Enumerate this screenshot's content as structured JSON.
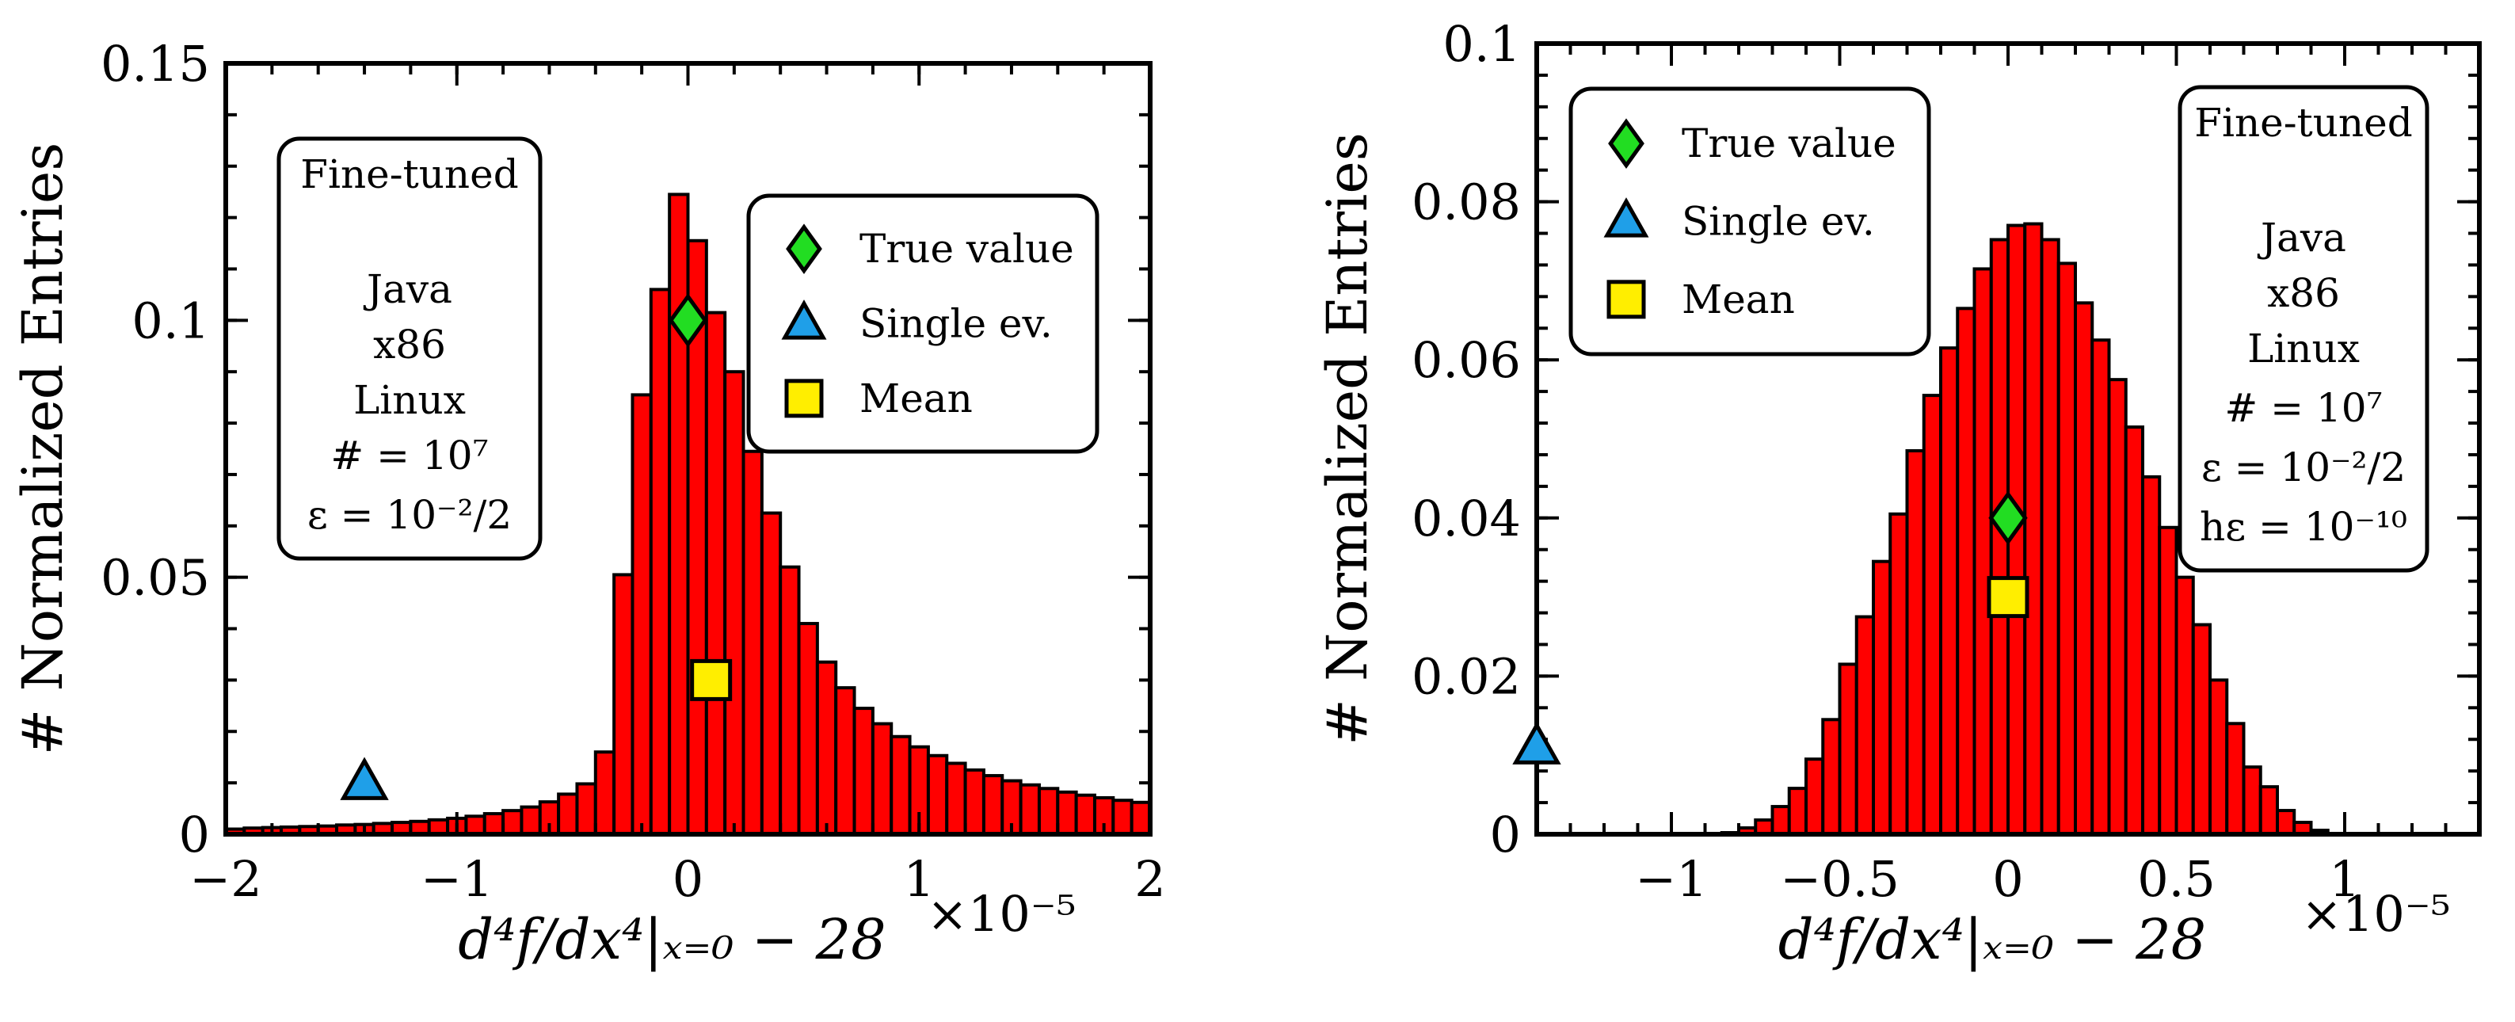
{
  "chart_data": [
    {
      "type": "bar",
      "title": "",
      "xlabel": "d⁴f/dx⁴|ₓ₌₀ − 28",
      "x_multiplier": "×10⁻⁵",
      "ylabel": "# Normalized Entries",
      "xlim": [
        -2,
        2
      ],
      "ylim": [
        0,
        0.15
      ],
      "x_ticks": [
        -2,
        -1,
        0,
        1,
        2
      ],
      "x_tick_labels": [
        "−2",
        "−1",
        "0",
        "1",
        "2"
      ],
      "y_ticks": [
        0,
        0.05,
        0.1,
        0.15
      ],
      "y_tick_labels": [
        "0",
        "0.05",
        "0.1",
        "0.15"
      ],
      "bins": {
        "start": -2.0,
        "width": 0.08
      },
      "values": [
        0.001,
        0.0012,
        0.0013,
        0.0014,
        0.0015,
        0.0016,
        0.0018,
        0.0019,
        0.0021,
        0.0023,
        0.0025,
        0.0028,
        0.0031,
        0.0035,
        0.004,
        0.0046,
        0.0053,
        0.0063,
        0.0078,
        0.0098,
        0.016,
        0.0505,
        0.0855,
        0.106,
        0.1245,
        0.1155,
        0.1015,
        0.09,
        0.0745,
        0.0625,
        0.052,
        0.041,
        0.0335,
        0.0285,
        0.0245,
        0.0215,
        0.019,
        0.017,
        0.0153,
        0.0138,
        0.0125,
        0.0114,
        0.0104,
        0.0096,
        0.0089,
        0.0082,
        0.0076,
        0.0071,
        0.0066,
        0.0062
      ],
      "markers": [
        {
          "name": "True value",
          "shape": "diamond",
          "color": "#22dd22",
          "x": 0.0,
          "y": 0.1
        },
        {
          "name": "Single ev.",
          "shape": "triangle",
          "color": "#1f9fe8",
          "x": -1.4,
          "y": 0.01
        },
        {
          "name": "Mean",
          "shape": "square",
          "color": "#ffee00",
          "x": 0.1,
          "y": 0.03
        }
      ],
      "legend": {
        "position": "top-right",
        "entries": [
          "True value",
          "Single ev.",
          "Mean"
        ]
      },
      "info_box": {
        "position": "top-left",
        "lines": [
          "Fine-tuned",
          "",
          "Java",
          "x86",
          "Linux",
          "# = 10⁷",
          "ε = 10⁻²/2"
        ]
      }
    },
    {
      "type": "bar",
      "title": "",
      "xlabel": "d⁴f/dx⁴|ₓ₌₀ − 28",
      "x_multiplier": "×10⁻⁵",
      "ylabel": "# Normalized Entries",
      "xlim": [
        -1.4,
        1.4
      ],
      "ylim": [
        0,
        0.1
      ],
      "x_ticks": [
        -1,
        -0.5,
        0,
        0.5,
        1
      ],
      "x_tick_labels": [
        "−1",
        "−0.5",
        "0",
        "0.5",
        "1"
      ],
      "y_ticks": [
        0,
        0.02,
        0.04,
        0.06,
        0.08,
        0.1
      ],
      "y_tick_labels": [
        "0",
        "0.02",
        "0.04",
        "0.06",
        "0.08",
        "0.1"
      ],
      "bins": {
        "start": -0.85,
        "width": 0.05
      },
      "values": [
        0.0002,
        0.0008,
        0.0018,
        0.0035,
        0.0058,
        0.0095,
        0.0145,
        0.0215,
        0.0275,
        0.0345,
        0.0405,
        0.0485,
        0.0555,
        0.0615,
        0.0665,
        0.0715,
        0.0752,
        0.077,
        0.0772,
        0.0752,
        0.0722,
        0.0672,
        0.0625,
        0.0575,
        0.0515,
        0.0452,
        0.0388,
        0.0325,
        0.0265,
        0.0195,
        0.014,
        0.0085,
        0.006,
        0.003,
        0.0015,
        0.0005
      ],
      "markers": [
        {
          "name": "True value",
          "shape": "diamond",
          "color": "#22dd22",
          "x": 0.0,
          "y": 0.04
        },
        {
          "name": "Single ev.",
          "shape": "triangle",
          "color": "#1f9fe8",
          "x": -1.4,
          "y": 0.011
        },
        {
          "name": "Mean",
          "shape": "square",
          "color": "#ffee00",
          "x": 0.0,
          "y": 0.03
        }
      ],
      "legend": {
        "position": "top-left",
        "entries": [
          "True value",
          "Single ev.",
          "Mean"
        ]
      },
      "info_box": {
        "position": "top-right",
        "lines": [
          "Fine-tuned",
          "",
          "Java",
          "x86",
          "Linux",
          "# = 10⁷",
          "ε = 10⁻²/2",
          "hε = 10⁻¹⁰"
        ]
      }
    }
  ],
  "colors": {
    "bar_fill": "#ff0000",
    "bar_edge": "#000000"
  }
}
